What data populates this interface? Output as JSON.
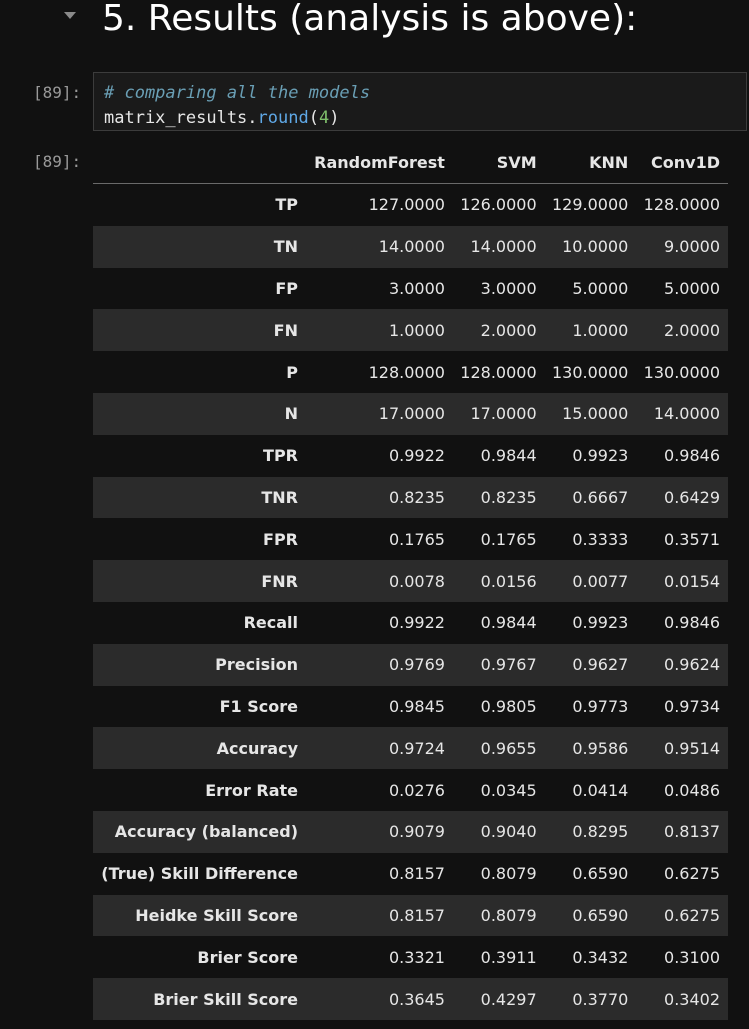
{
  "heading": "5. Results (analysis is above):",
  "cell": {
    "input_prompt": "[89]:",
    "output_prompt": "[89]:",
    "code": {
      "comment": "# comparing all the models",
      "object": "matrix_results",
      "dot": ".",
      "method": "round",
      "open_paren": "(",
      "arg": "4",
      "close_paren": ")"
    }
  },
  "table": {
    "columns": [
      "RandomForest",
      "SVM",
      "KNN",
      "Conv1D"
    ],
    "rows": [
      {
        "label": "TP",
        "values": [
          "127.0000",
          "126.0000",
          "129.0000",
          "128.0000"
        ]
      },
      {
        "label": "TN",
        "values": [
          "14.0000",
          "14.0000",
          "10.0000",
          "9.0000"
        ]
      },
      {
        "label": "FP",
        "values": [
          "3.0000",
          "3.0000",
          "5.0000",
          "5.0000"
        ]
      },
      {
        "label": "FN",
        "values": [
          "1.0000",
          "2.0000",
          "1.0000",
          "2.0000"
        ]
      },
      {
        "label": "P",
        "values": [
          "128.0000",
          "128.0000",
          "130.0000",
          "130.0000"
        ]
      },
      {
        "label": "N",
        "values": [
          "17.0000",
          "17.0000",
          "15.0000",
          "14.0000"
        ]
      },
      {
        "label": "TPR",
        "values": [
          "0.9922",
          "0.9844",
          "0.9923",
          "0.9846"
        ]
      },
      {
        "label": "TNR",
        "values": [
          "0.8235",
          "0.8235",
          "0.6667",
          "0.6429"
        ]
      },
      {
        "label": "FPR",
        "values": [
          "0.1765",
          "0.1765",
          "0.3333",
          "0.3571"
        ]
      },
      {
        "label": "FNR",
        "values": [
          "0.0078",
          "0.0156",
          "0.0077",
          "0.0154"
        ]
      },
      {
        "label": "Recall",
        "values": [
          "0.9922",
          "0.9844",
          "0.9923",
          "0.9846"
        ]
      },
      {
        "label": "Precision",
        "values": [
          "0.9769",
          "0.9767",
          "0.9627",
          "0.9624"
        ]
      },
      {
        "label": "F1 Score",
        "values": [
          "0.9845",
          "0.9805",
          "0.9773",
          "0.9734"
        ]
      },
      {
        "label": "Accuracy",
        "values": [
          "0.9724",
          "0.9655",
          "0.9586",
          "0.9514"
        ]
      },
      {
        "label": "Error Rate",
        "values": [
          "0.0276",
          "0.0345",
          "0.0414",
          "0.0486"
        ]
      },
      {
        "label": "Accuracy (balanced)",
        "values": [
          "0.9079",
          "0.9040",
          "0.8295",
          "0.8137"
        ]
      },
      {
        "label": "(True) Skill Difference",
        "values": [
          "0.8157",
          "0.8079",
          "0.6590",
          "0.6275"
        ]
      },
      {
        "label": "Heidke Skill Score",
        "values": [
          "0.8157",
          "0.8079",
          "0.6590",
          "0.6275"
        ]
      },
      {
        "label": "Brier Score",
        "values": [
          "0.3321",
          "0.3911",
          "0.3432",
          "0.3100"
        ]
      },
      {
        "label": "Brier Skill Score",
        "values": [
          "0.3645",
          "0.4297",
          "0.3770",
          "0.3402"
        ]
      }
    ]
  }
}
